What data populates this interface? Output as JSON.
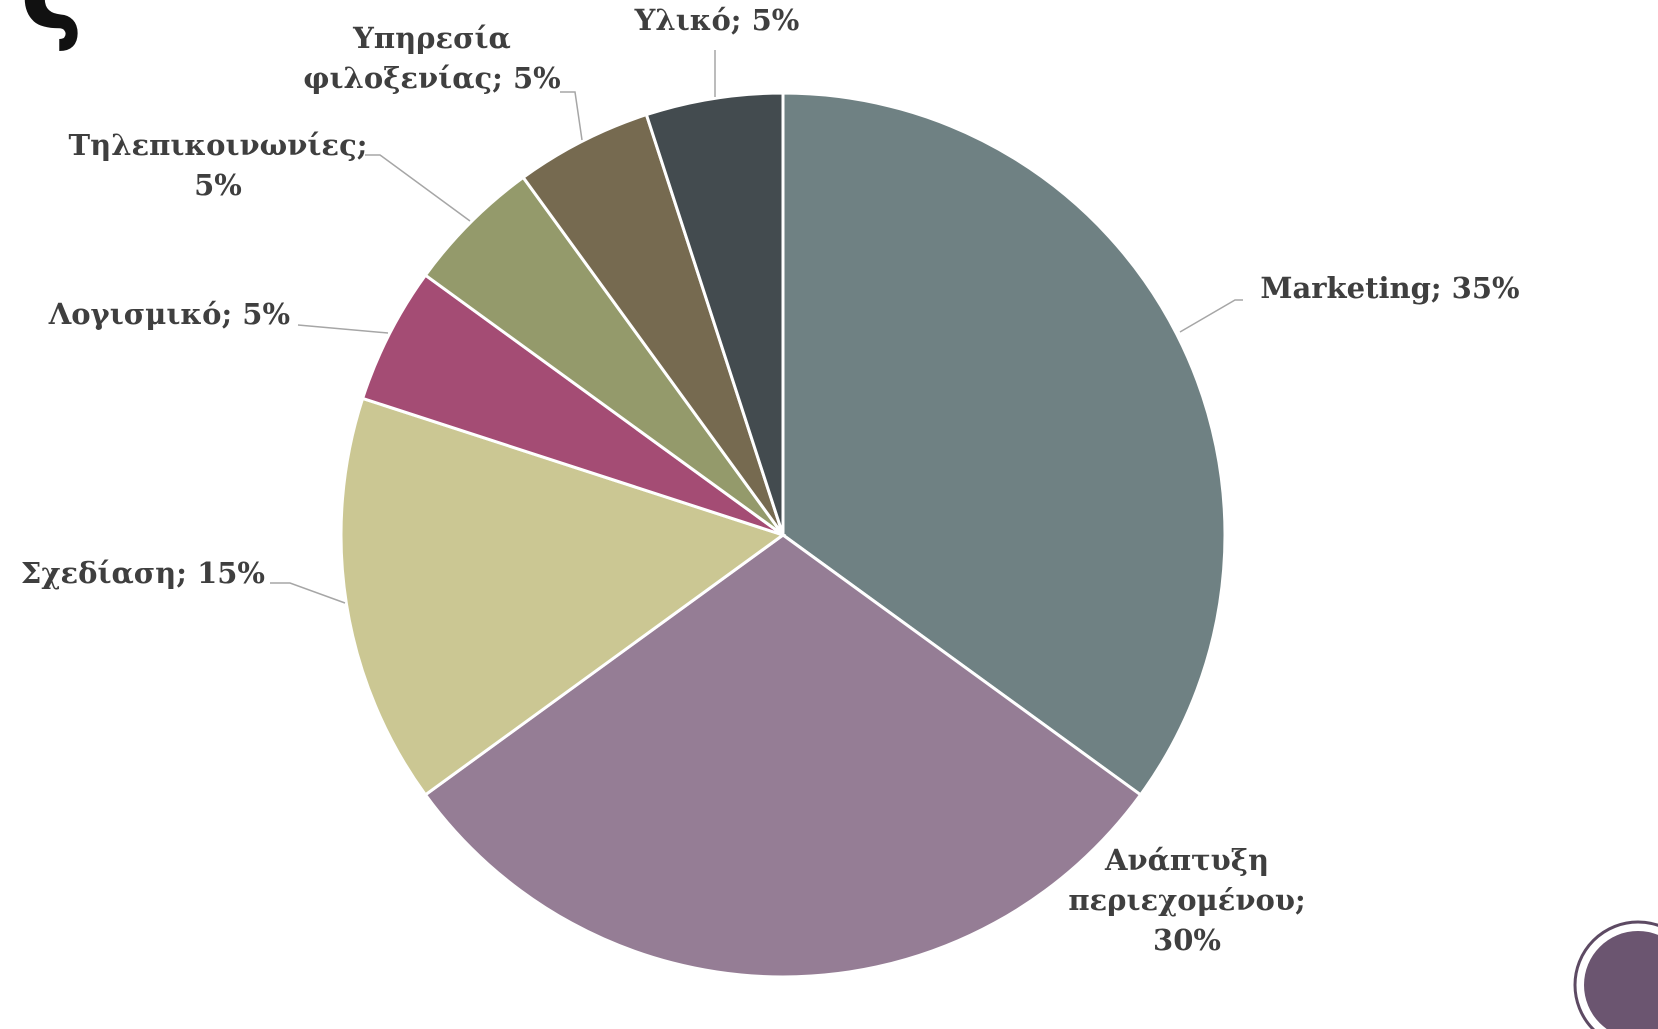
{
  "title": "ς",
  "chart_data": {
    "type": "pie",
    "values": [
      35,
      30,
      15,
      5,
      5,
      5,
      5
    ],
    "value_labels": [
      "Marketing; 35%",
      "Ανάπτυξη περιεχομένου; 30%",
      "Σχεδίαση; 15%",
      "Λογισμικό; 5%",
      "Τηλεπικοινωνίες; 5%",
      "Υπηρεσία φιλοξενίας; 5%",
      "Υλικό; 5%"
    ],
    "colors": [
      "#6f8183",
      "#957d95",
      "#cbc793",
      "#a44c74",
      "#949a6b",
      "#766a50",
      "#434b4f"
    ]
  }
}
